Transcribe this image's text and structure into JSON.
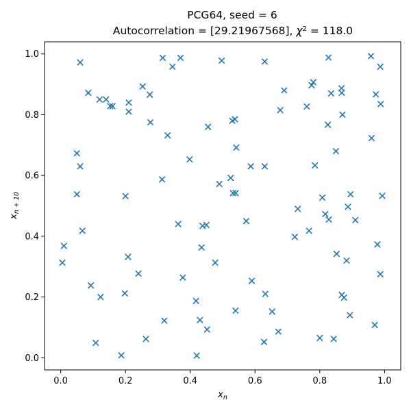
{
  "chart_data": {
    "type": "scatter",
    "title": "PCG64, seed = 6",
    "subtitle_prefix": "Autocorrelation = [29.21967568], ",
    "subtitle_chi_symbol": "χ",
    "subtitle_chi_exponent": "2",
    "subtitle_chi_value": " = 118.0",
    "xlabel_main": "x",
    "xlabel_sub": "n",
    "ylabel_main": "x",
    "ylabel_sub": "n + 10",
    "xlim": [
      -0.05,
      1.05
    ],
    "ylim": [
      -0.04,
      1.04
    ],
    "xticks": [
      0.0,
      0.2,
      0.4,
      0.6,
      0.8,
      1.0
    ],
    "xtick_labels": [
      "0.0",
      "0.2",
      "0.4",
      "0.6",
      "0.8",
      "1.0"
    ],
    "yticks": [
      0.0,
      0.2,
      0.4,
      0.6,
      0.8,
      1.0
    ],
    "ytick_labels": [
      "0.0",
      "0.2",
      "0.4",
      "0.6",
      "0.8",
      "1.0"
    ],
    "marker": "x",
    "color": "#1f77b4",
    "points": [
      [
        0.005,
        0.313
      ],
      [
        0.01,
        0.368
      ],
      [
        0.05,
        0.673
      ],
      [
        0.05,
        0.538
      ],
      [
        0.06,
        0.972
      ],
      [
        0.06,
        0.63
      ],
      [
        0.067,
        0.418
      ],
      [
        0.085,
        0.872
      ],
      [
        0.093,
        0.238
      ],
      [
        0.108,
        0.049
      ],
      [
        0.12,
        0.85
      ],
      [
        0.123,
        0.2
      ],
      [
        0.14,
        0.85
      ],
      [
        0.153,
        0.828
      ],
      [
        0.16,
        0.828
      ],
      [
        0.187,
        0.008
      ],
      [
        0.198,
        0.212
      ],
      [
        0.2,
        0.532
      ],
      [
        0.208,
        0.332
      ],
      [
        0.21,
        0.81
      ],
      [
        0.21,
        0.84
      ],
      [
        0.24,
        0.277
      ],
      [
        0.253,
        0.893
      ],
      [
        0.263,
        0.062
      ],
      [
        0.275,
        0.866
      ],
      [
        0.277,
        0.775
      ],
      [
        0.313,
        0.587
      ],
      [
        0.315,
        0.987
      ],
      [
        0.32,
        0.122
      ],
      [
        0.33,
        0.732
      ],
      [
        0.345,
        0.958
      ],
      [
        0.363,
        0.44
      ],
      [
        0.37,
        0.987
      ],
      [
        0.377,
        0.264
      ],
      [
        0.398,
        0.653
      ],
      [
        0.418,
        0.187
      ],
      [
        0.42,
        0.007
      ],
      [
        0.43,
        0.124
      ],
      [
        0.435,
        0.363
      ],
      [
        0.438,
        0.434
      ],
      [
        0.45,
        0.437
      ],
      [
        0.452,
        0.093
      ],
      [
        0.455,
        0.76
      ],
      [
        0.477,
        0.313
      ],
      [
        0.49,
        0.572
      ],
      [
        0.497,
        0.978
      ],
      [
        0.525,
        0.592
      ],
      [
        0.53,
        0.78
      ],
      [
        0.532,
        0.542
      ],
      [
        0.538,
        0.785
      ],
      [
        0.54,
        0.155
      ],
      [
        0.54,
        0.542
      ],
      [
        0.542,
        0.692
      ],
      [
        0.573,
        0.45
      ],
      [
        0.587,
        0.63
      ],
      [
        0.59,
        0.253
      ],
      [
        0.628,
        0.052
      ],
      [
        0.63,
        0.975
      ],
      [
        0.63,
        0.63
      ],
      [
        0.632,
        0.21
      ],
      [
        0.653,
        0.152
      ],
      [
        0.672,
        0.086
      ],
      [
        0.678,
        0.815
      ],
      [
        0.69,
        0.88
      ],
      [
        0.723,
        0.398
      ],
      [
        0.732,
        0.49
      ],
      [
        0.76,
        0.827
      ],
      [
        0.767,
        0.418
      ],
      [
        0.775,
        0.897
      ],
      [
        0.78,
        0.907
      ],
      [
        0.785,
        0.633
      ],
      [
        0.8,
        0.065
      ],
      [
        0.808,
        0.527
      ],
      [
        0.817,
        0.473
      ],
      [
        0.825,
        0.767
      ],
      [
        0.827,
        0.988
      ],
      [
        0.828,
        0.455
      ],
      [
        0.835,
        0.87
      ],
      [
        0.843,
        0.062
      ],
      [
        0.85,
        0.68
      ],
      [
        0.852,
        0.342
      ],
      [
        0.867,
        0.887
      ],
      [
        0.868,
        0.872
      ],
      [
        0.868,
        0.207
      ],
      [
        0.87,
        0.8
      ],
      [
        0.875,
        0.198
      ],
      [
        0.883,
        0.32
      ],
      [
        0.887,
        0.497
      ],
      [
        0.893,
        0.14
      ],
      [
        0.895,
        0.538
      ],
      [
        0.91,
        0.453
      ],
      [
        0.958,
        0.993
      ],
      [
        0.96,
        0.723
      ],
      [
        0.97,
        0.108
      ],
      [
        0.973,
        0.867
      ],
      [
        0.978,
        0.373
      ],
      [
        0.987,
        0.275
      ],
      [
        0.987,
        0.958
      ],
      [
        0.988,
        0.835
      ],
      [
        0.993,
        0.533
      ]
    ]
  }
}
